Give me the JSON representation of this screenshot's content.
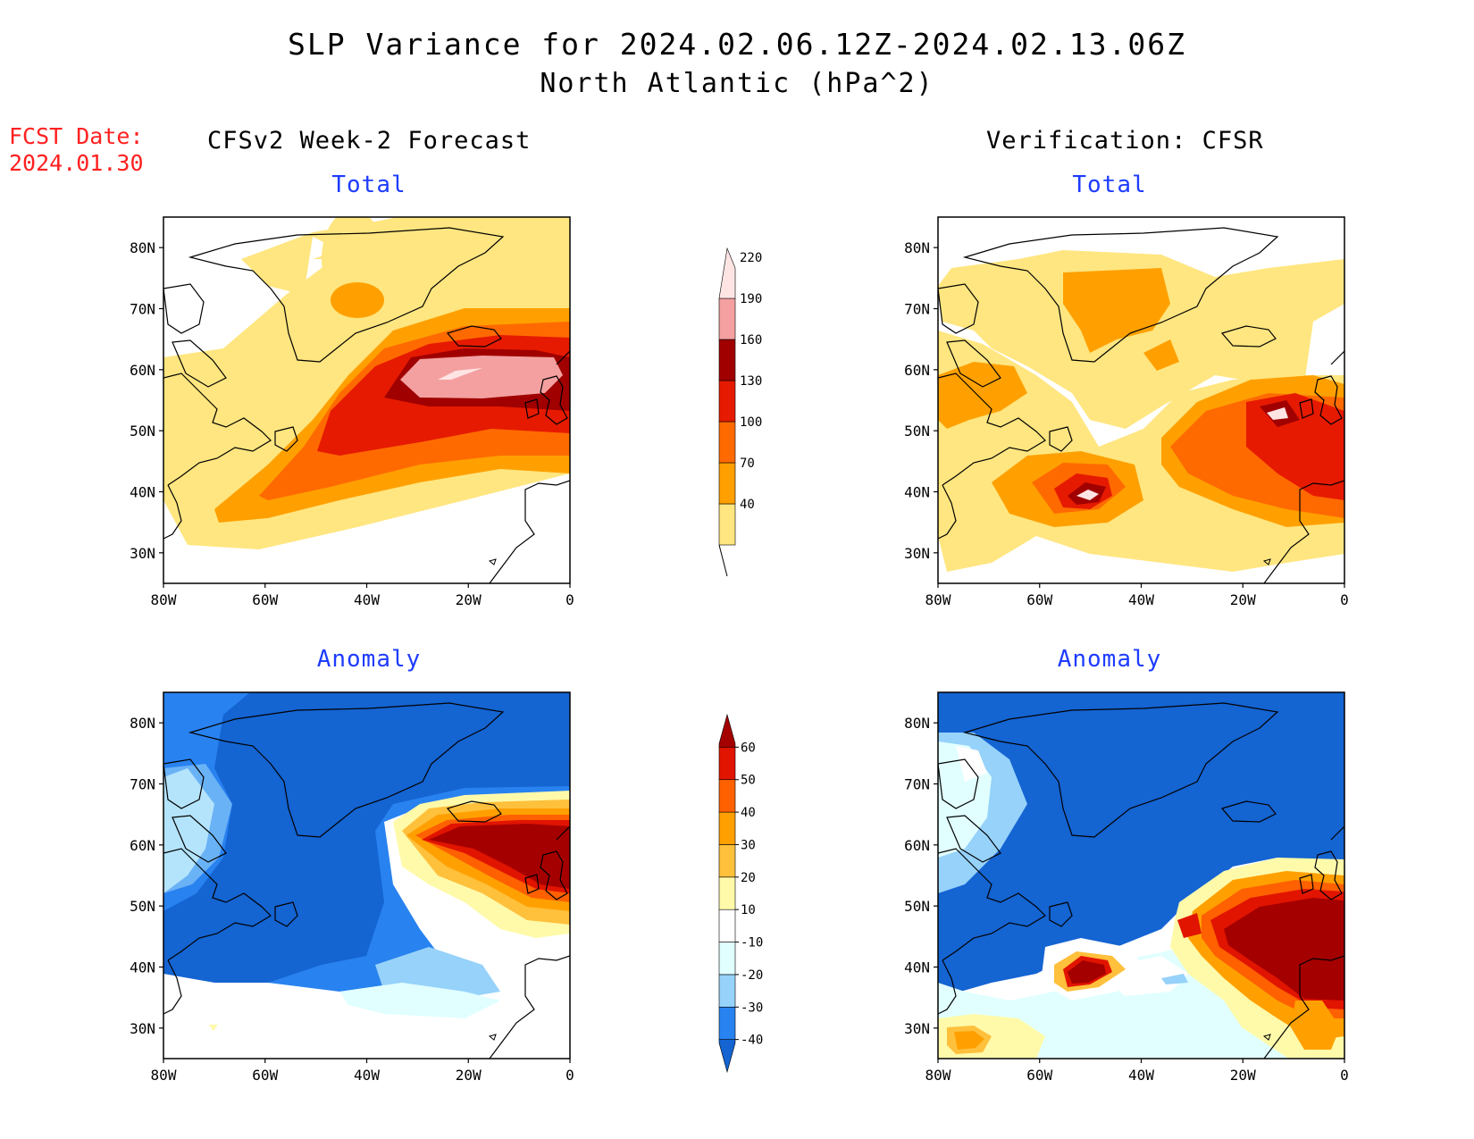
{
  "title": "SLP Variance for 2024.02.06.12Z-2024.02.13.06Z",
  "subtitle": "North Atlantic (hPa^2)",
  "forecast_date": {
    "label": "FCST Date:",
    "value": "2024.01.30"
  },
  "columns": {
    "left": "CFSv2 Week-2 Forecast",
    "right": "Verification: CFSR"
  },
  "panel_titles": {
    "top": "Total",
    "bottom": "Anomaly"
  },
  "axes": {
    "lon_ticks": [
      "80W",
      "60W",
      "40W",
      "20W",
      "0"
    ],
    "lat_ticks": [
      "30N",
      "40N",
      "50N",
      "60N",
      "70N",
      "80N"
    ],
    "lon_range": [
      -80,
      0
    ],
    "lat_range": [
      25,
      85
    ]
  },
  "colorbars": {
    "total": {
      "levels": [
        "40",
        "70",
        "100",
        "130",
        "160",
        "190",
        "220"
      ],
      "colors": [
        "#ffe680",
        "#ffa000",
        "#ff6a00",
        "#e61a00",
        "#a00000",
        "#f4a0a0",
        "#ffe4e4"
      ]
    },
    "anomaly": {
      "levels": [
        "-40",
        "-30",
        "-20",
        "-10",
        "10",
        "20",
        "30",
        "40",
        "50",
        "60"
      ],
      "colors": [
        "#1464d2",
        "#2882f0",
        "#96d2fa",
        "#e1ffff",
        "#ffffff",
        "#fffaaa",
        "#ffc03c",
        "#ffa000",
        "#ff6000",
        "#e11400",
        "#a50000"
      ]
    }
  },
  "fields": {
    "forecast_total": {
      "description_units": "hPa^2",
      "max_level": "220",
      "peak_region": "55-62N, 30W-0"
    },
    "verification_total": {
      "max_level": "220",
      "peak_regions": [
        "~41N 50W",
        "~54N 14W"
      ]
    },
    "forecast_anomaly": {
      "min_level": "-40",
      "max_level": "60"
    },
    "verification_anomaly": {
      "min_level": "-40",
      "max_level": "60"
    }
  }
}
